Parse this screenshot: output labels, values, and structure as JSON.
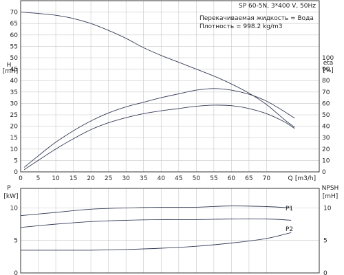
{
  "chart_data": [
    {
      "type": "line",
      "panel": "top",
      "title": "SP 60-5N, 3*400 V, 50Hz",
      "info_lines": [
        "Перекачиваемая жидкость = Вода",
        "Плотность = 998.2 kg/m3"
      ],
      "left_axis": {
        "label": "H",
        "unit": "[mH]",
        "ylim": [
          0,
          75
        ],
        "ticks": [
          0,
          5,
          10,
          15,
          20,
          25,
          30,
          35,
          40,
          45,
          50,
          55,
          60,
          65,
          70
        ]
      },
      "right_axis": {
        "label": "eta",
        "unit": "[%]",
        "ylim": [
          0,
          150
        ],
        "ticks": [
          0,
          10,
          20,
          30,
          40,
          50,
          60,
          70,
          80,
          90,
          100
        ]
      },
      "x_axis": {
        "label": "Q",
        "unit": "[m3/h]",
        "xlim": [
          0,
          85
        ],
        "ticks": [
          0,
          5,
          10,
          15,
          20,
          25,
          30,
          35,
          40,
          45,
          50,
          55,
          60,
          65,
          70
        ]
      },
      "grid": true,
      "series": [
        {
          "axis": "left",
          "x": [
            0,
            5,
            10,
            15,
            20,
            25,
            30,
            35,
            40,
            45,
            50,
            55,
            60,
            65,
            70,
            75,
            78
          ],
          "values": [
            70,
            69.4,
            68.6,
            67.2,
            65,
            62,
            58.5,
            54.4,
            51,
            48,
            45,
            42,
            38.5,
            34.5,
            29.5,
            23,
            19.5
          ]
        },
        {
          "axis": "left",
          "x": [
            1,
            5,
            10,
            15,
            20,
            25,
            30,
            35,
            40,
            45,
            50,
            55,
            60,
            65,
            70,
            75,
            78
          ],
          "values": [
            2,
            7,
            13,
            18,
            22.3,
            25.8,
            28.5,
            30.5,
            32.5,
            34.2,
            35.8,
            36.5,
            35.8,
            34,
            31,
            26.5,
            23.5
          ]
        },
        {
          "axis": "right",
          "x": [
            1,
            5,
            10,
            15,
            20,
            25,
            30,
            35,
            40,
            45,
            50,
            55,
            60,
            65,
            70,
            75,
            78
          ],
          "values": [
            2,
            10,
            20,
            29,
            37,
            43,
            47.5,
            51,
            53.5,
            55.5,
            57.5,
            58.5,
            58,
            55.5,
            51,
            44,
            38
          ]
        }
      ]
    },
    {
      "type": "line",
      "panel": "bottom",
      "left_axis": {
        "label": "P",
        "unit": "[kW]",
        "ylim": [
          0,
          13
        ],
        "ticks": [
          0,
          5,
          10
        ]
      },
      "right_axis": {
        "label": "NPSH",
        "unit": "[mH]",
        "ylim": [
          0,
          13
        ],
        "ticks": [
          0,
          5,
          10
        ]
      },
      "x_axis": {
        "xlim": [
          0,
          85
        ]
      },
      "grid": true,
      "series": [
        {
          "name": "P1",
          "axis": "left",
          "x": [
            0,
            10,
            20,
            30,
            40,
            50,
            60,
            70,
            77
          ],
          "values": [
            8.8,
            9.3,
            9.8,
            10,
            10.1,
            10.1,
            10.3,
            10.2,
            10
          ]
        },
        {
          "name": "P2",
          "axis": "left",
          "x": [
            0,
            10,
            20,
            30,
            40,
            50,
            60,
            70,
            77
          ],
          "values": [
            7,
            7.5,
            7.9,
            8.1,
            8.2,
            8.2,
            8.3,
            8.3,
            8.1
          ]
        },
        {
          "name": "NPSH",
          "axis": "right",
          "x": [
            0,
            10,
            20,
            30,
            40,
            50,
            60,
            70,
            77
          ],
          "values": [
            3.5,
            3.5,
            3.5,
            3.6,
            3.8,
            4.1,
            4.6,
            5.3,
            6.2
          ]
        }
      ]
    }
  ],
  "colors": {
    "curve": "#333a55",
    "grid": "#c8c8c8",
    "frame": "#333333"
  }
}
